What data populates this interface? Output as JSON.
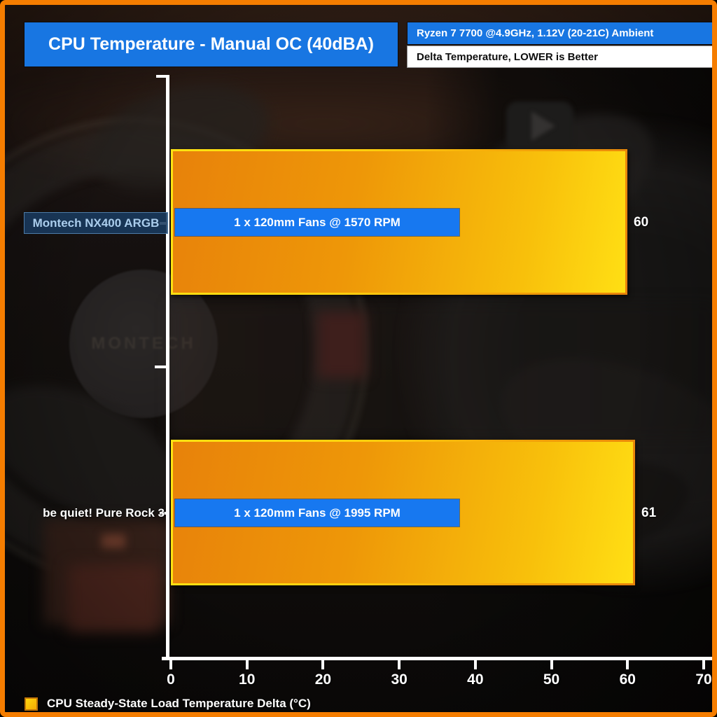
{
  "header": {
    "title": "CPU Temperature - Manual OC (40dBA)",
    "spec_badge": "Ryzen 7 7700 @4.9GHz, 1.12V (20-21C) Ambient",
    "note_badge": "Delta Temperature, LOWER is Better"
  },
  "chart_data": {
    "type": "bar",
    "orientation": "horizontal",
    "title": "CPU Temperature - Manual OC (40dBA)",
    "categories": [
      "Montech NX400 ARGB",
      "be quiet! Pure Rock 3"
    ],
    "values": [
      60,
      61
    ],
    "bar_annotations": [
      "1 x 120mm Fans @ 1570 RPM",
      "1 x 120mm Fans @ 1995 RPM"
    ],
    "xlabel": "CPU Steady-State Load Temperature Delta (°C)",
    "xlim": [
      0,
      70
    ],
    "xticks": [
      0,
      10,
      20,
      30,
      40,
      50,
      60,
      70
    ],
    "grid": false,
    "legend_position": "bottom-left",
    "legend": [
      "CPU Steady-State Load Temperature Delta (°C)"
    ],
    "highlighted_category": "Montech NX400 ARGB"
  },
  "background": {
    "fan_hub_text": "MONTECH"
  },
  "colors": {
    "frame-orange": "#f57d00",
    "panel-blue": "#1876e2",
    "label-blue": "#1778f0",
    "bar-orange": "#e8820a",
    "bar-yellow": "#ffdf14",
    "highlight-navy": "#193a5e",
    "highlight-text": "#aacdec",
    "axis-white": "#ffffff"
  }
}
